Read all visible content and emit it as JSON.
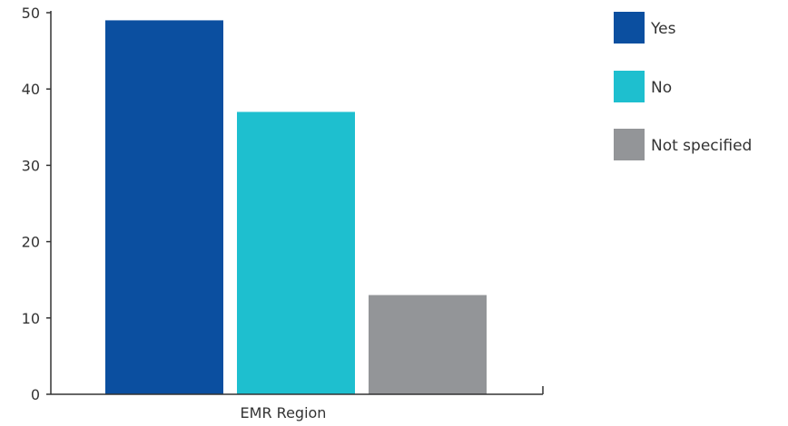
{
  "chart_data": {
    "type": "bar",
    "categories": [
      "EMR Region"
    ],
    "series": [
      {
        "name": "Yes",
        "values": [
          49
        ]
      },
      {
        "name": "No",
        "values": [
          37
        ]
      },
      {
        "name": "Not specified",
        "values": [
          13
        ]
      }
    ],
    "colors": [
      "#0b4fa0",
      "#1ebfcf",
      "#939598"
    ],
    "ylim": [
      0,
      50
    ],
    "yticks": [
      0,
      10,
      20,
      30,
      40,
      50
    ],
    "grid": false,
    "legend": "right"
  }
}
